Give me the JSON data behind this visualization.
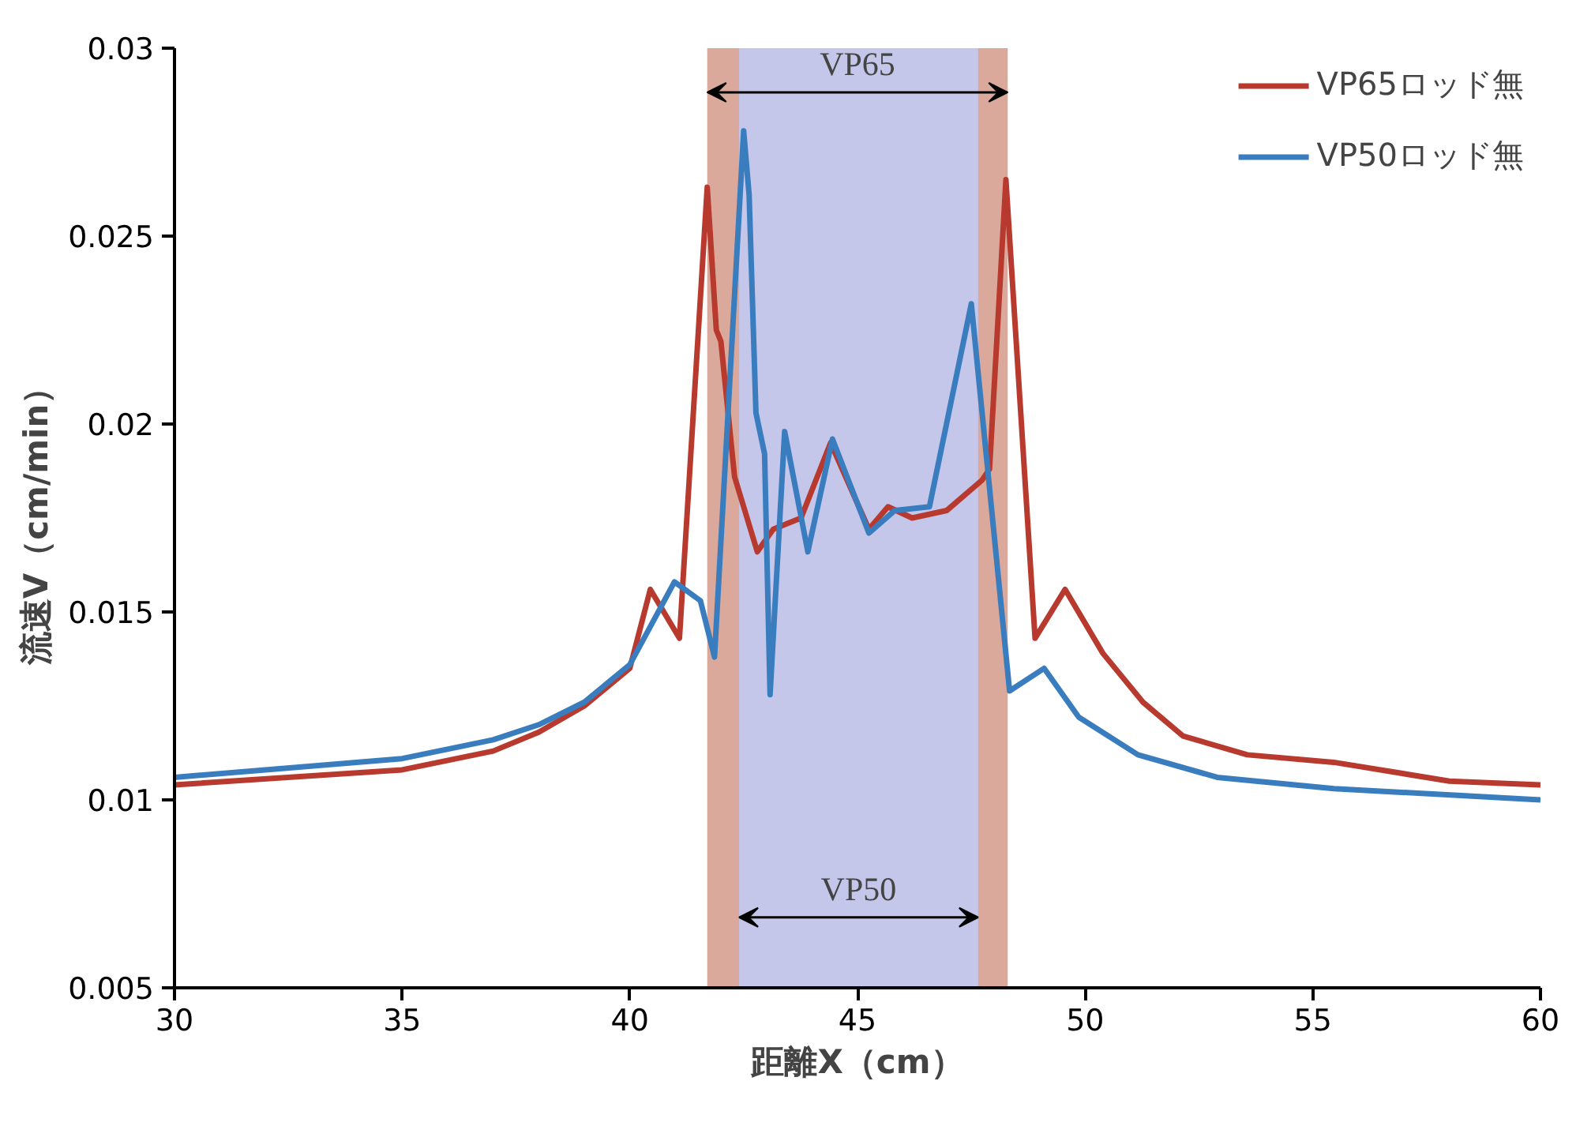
{
  "chart_data": {
    "type": "line",
    "xlabel": "距離X（cm）",
    "ylabel": "流速V（cm/min）",
    "xlim": [
      30,
      60
    ],
    "xticks": [
      30,
      35,
      40,
      45,
      50,
      55,
      60
    ],
    "ylim": [
      0.005,
      0.03
    ],
    "yticks": [
      0.005,
      0.01,
      0.015,
      0.02,
      0.025,
      0.03
    ],
    "grid": false,
    "legend": "top right",
    "line_style": "solid",
    "series": [
      {
        "name": "VP65ロッド無",
        "color": "#b83a2e",
        "x": [
          30,
          35,
          37,
          38,
          39,
          40,
          40.45,
          41.09,
          41.7,
          41.9,
          42.0,
          42.3,
          42.8,
          43.15,
          43.76,
          44.41,
          45.25,
          45.67,
          46.2,
          46.96,
          47.73,
          47.9,
          48.26,
          48.9,
          49.56,
          50.39,
          51.27,
          52.15,
          53.56,
          55.46,
          58.0,
          60
        ],
        "values": [
          0.0104,
          0.0108,
          0.0113,
          0.0118,
          0.0125,
          0.0135,
          0.0156,
          0.0143,
          0.0263,
          0.0225,
          0.0222,
          0.0186,
          0.0166,
          0.0172,
          0.0175,
          0.0195,
          0.0172,
          0.0178,
          0.0175,
          0.0177,
          0.0185,
          0.0188,
          0.0265,
          0.0143,
          0.0156,
          0.0139,
          0.0126,
          0.0117,
          0.0112,
          0.011,
          0.0105,
          0.0104
        ]
      },
      {
        "name": "VP50ロッド無",
        "color": "#3a7dbf",
        "x": [
          30,
          35,
          37,
          38,
          39,
          40,
          40.98,
          41.55,
          41.86,
          42.5,
          42.62,
          42.77,
          42.96,
          43.08,
          43.4,
          43.91,
          44.45,
          45.25,
          45.82,
          46.58,
          47.5,
          48.34,
          49.1,
          49.86,
          51.16,
          52.9,
          55.46,
          60
        ],
        "values": [
          0.0106,
          0.0111,
          0.0116,
          0.012,
          0.0126,
          0.0136,
          0.0158,
          0.0153,
          0.0138,
          0.0278,
          0.0261,
          0.0203,
          0.0192,
          0.0128,
          0.0198,
          0.0166,
          0.0196,
          0.0171,
          0.0177,
          0.0178,
          0.0232,
          0.0129,
          0.0135,
          0.0122,
          0.0112,
          0.0106,
          0.0103,
          0.01
        ]
      }
    ],
    "bands": [
      {
        "axis": "x",
        "from": 41.7,
        "to": 48.3,
        "label": "VP65",
        "color": "#dba99b"
      },
      {
        "axis": "x",
        "from": 42.4,
        "to": 47.65,
        "label": "VP50",
        "color": "#c4c6ea"
      }
    ]
  }
}
